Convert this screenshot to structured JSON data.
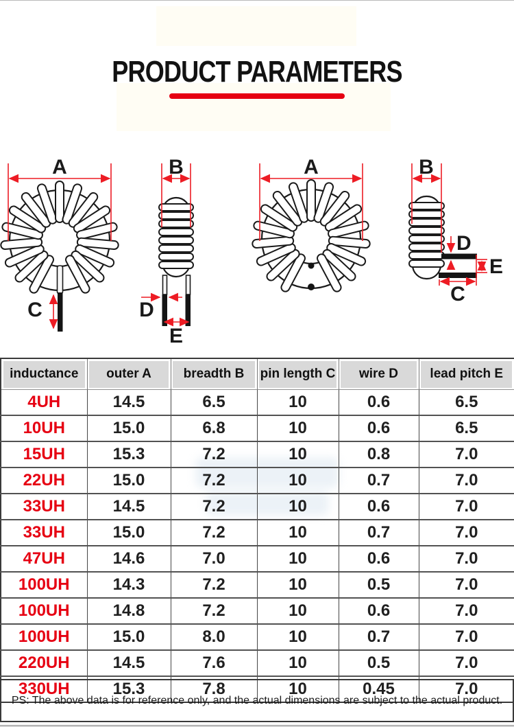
{
  "title": {
    "text": "PRODUCT PARAMETERS"
  },
  "diagrams": {
    "front1": {
      "a": "A",
      "c": "C"
    },
    "side1": {
      "b": "B",
      "d": "D",
      "e": "E"
    },
    "front2": {
      "a": "A"
    },
    "side2": {
      "b": "B",
      "c": "C",
      "d": "D",
      "e": "E"
    }
  },
  "table": {
    "headers": [
      "inductance",
      "outer A",
      "breadth B",
      "pin length C",
      "wire D",
      "lead pitch E"
    ],
    "rows": [
      [
        "4UH",
        "14.5",
        "6.5",
        "10",
        "0.6",
        "6.5"
      ],
      [
        "10UH",
        "15.0",
        "6.8",
        "10",
        "0.6",
        "6.5"
      ],
      [
        "15UH",
        "15.3",
        "7.2",
        "10",
        "0.8",
        "7.0"
      ],
      [
        "22UH",
        "15.0",
        "7.2",
        "10",
        "0.7",
        "7.0"
      ],
      [
        "33UH",
        "14.5",
        "7.2",
        "10",
        "0.6",
        "7.0"
      ],
      [
        "33UH",
        "15.0",
        "7.2",
        "10",
        "0.7",
        "7.0"
      ],
      [
        "47UH",
        "14.6",
        "7.0",
        "10",
        "0.6",
        "7.0"
      ],
      [
        "100UH",
        "14.3",
        "7.2",
        "10",
        "0.5",
        "7.0"
      ],
      [
        "100UH",
        "14.8",
        "7.2",
        "10",
        "0.6",
        "7.0"
      ],
      [
        "100UH",
        "15.0",
        "8.0",
        "10",
        "0.7",
        "7.0"
      ],
      [
        "220UH",
        "14.5",
        "7.6",
        "10",
        "0.5",
        "7.0"
      ],
      [
        "330UH",
        "15.3",
        "7.8",
        "10",
        "0.45",
        "7.0"
      ]
    ]
  },
  "footer": {
    "note": "PS: The above data is for reference only, and the actual dimensions are subject to the actual product."
  },
  "colors": {
    "accent_red": "#e60012",
    "dimension_red": "#ed1c24",
    "header_bg": "#d9d9d9",
    "text_dark": "#202020"
  }
}
